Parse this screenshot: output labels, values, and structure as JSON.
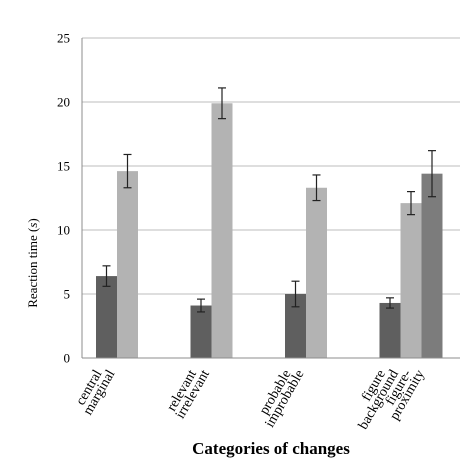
{
  "chart_data": {
    "type": "bar",
    "xlabel": "Categories of changes",
    "ylabel_prefix": "Reaction time (",
    "ylabel_unit": "s",
    "ylabel_suffix": ")",
    "ylim": [
      0,
      25
    ],
    "yticks": [
      "0",
      "5",
      "10",
      "15",
      "20",
      "25"
    ],
    "grid": true,
    "legend": false,
    "groups": [
      {
        "labels": [
          "central",
          "marginal"
        ],
        "bars": [
          {
            "value": 6.4,
            "error": 0.8,
            "color": "#5f5f5f"
          },
          {
            "value": 14.6,
            "error": 1.3,
            "color": "#b3b3b3"
          }
        ]
      },
      {
        "labels": [
          "relevant",
          "irrelevant"
        ],
        "bars": [
          {
            "value": 4.1,
            "error": 0.5,
            "color": "#5f5f5f"
          },
          {
            "value": 19.9,
            "error": 1.2,
            "color": "#b3b3b3"
          }
        ]
      },
      {
        "labels": [
          "probable",
          "improbable"
        ],
        "bars": [
          {
            "value": 5.0,
            "error": 1.0,
            "color": "#5f5f5f"
          },
          {
            "value": 13.3,
            "error": 1.0,
            "color": "#b3b3b3"
          }
        ]
      },
      {
        "labels": [
          "figure",
          "background",
          "figure-",
          "proximity"
        ],
        "bars": [
          {
            "value": 4.3,
            "error": 0.4,
            "color": "#5f5f5f"
          },
          {
            "value": 12.1,
            "error": 0.9,
            "color": "#b3b3b3"
          },
          {
            "value": 14.4,
            "error": 1.8,
            "color": "#7c7c7c"
          }
        ]
      }
    ]
  }
}
